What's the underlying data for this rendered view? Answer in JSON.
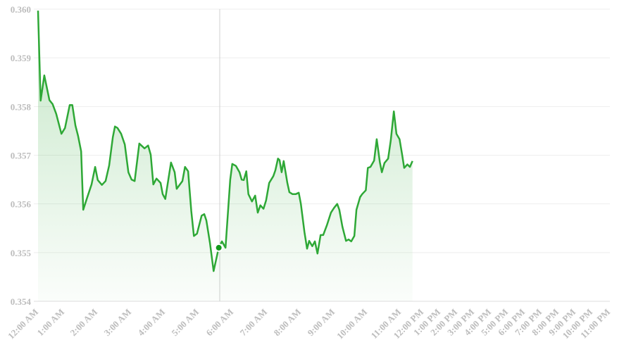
{
  "chart_data": {
    "type": "area",
    "title": "",
    "xlabel": "",
    "ylabel": "",
    "ylim": [
      0.354,
      0.36
    ],
    "y_ticks": [
      "0.354",
      "0.355",
      "0.356",
      "0.357",
      "0.358",
      "0.359",
      "0.360"
    ],
    "x_ticks": [
      "12:00 AM",
      "1:00 AM",
      "2:00 AM",
      "3:00 AM",
      "4:00 AM",
      "5:00 AM",
      "6:00 AM",
      "7:00 AM",
      "8:00 AM",
      "9:00 AM",
      "10:00 AM",
      "11:00 AM",
      "12:00 PM",
      "1:00 PM",
      "2:00 PM",
      "3:00 PM",
      "4:00 PM",
      "5:00 PM",
      "6:00 PM",
      "7:00 PM",
      "8:00 PM",
      "9:00 PM",
      "10:00 PM",
      "11:00 PM"
    ],
    "grid": true,
    "line_color": "#2ea836",
    "fill_color": "#2ea836",
    "hover": {
      "time": "5:48",
      "value": 0.3551
    },
    "x": [
      "0:00",
      "0:05",
      "0:12",
      "0:22",
      "0:28",
      "0:35",
      "0:45",
      "0:52",
      "1:01",
      "1:06",
      "1:12",
      "1:17",
      "1:23",
      "1:27",
      "1:34",
      "1:43",
      "1:50",
      "1:55",
      "2:03",
      "2:10",
      "2:17",
      "2:24",
      "2:28",
      "2:33",
      "2:40",
      "2:47",
      "2:54",
      "3:00",
      "3:06",
      "3:15",
      "3:25",
      "3:32",
      "3:37",
      "3:42",
      "3:48",
      "3:56",
      "4:00",
      "4:05",
      "4:16",
      "4:23",
      "4:27",
      "4:38",
      "4:43",
      "4:49",
      "4:55",
      "5:00",
      "5:06",
      "5:15",
      "5:20",
      "5:24",
      "5:31",
      "5:38",
      "5:44",
      "5:48",
      "5:54",
      "6:01",
      "6:10",
      "6:14",
      "6:21",
      "6:28",
      "6:32",
      "6:36",
      "6:41",
      "6:45",
      "6:52",
      "6:58",
      "7:03",
      "7:08",
      "7:14",
      "7:19",
      "7:25",
      "7:33",
      "7:37",
      "7:42",
      "7:45",
      "7:49",
      "7:53",
      "8:00",
      "8:04",
      "8:10",
      "8:16",
      "8:22",
      "8:26",
      "8:33",
      "8:38",
      "8:42",
      "8:48",
      "8:53",
      "8:58",
      "9:04",
      "9:09",
      "9:16",
      "9:24",
      "9:30",
      "9:36",
      "9:40",
      "9:46",
      "9:53",
      "9:58",
      "10:03",
      "10:09",
      "10:13",
      "10:20",
      "10:24",
      "10:31",
      "10:35",
      "10:40",
      "10:47",
      "10:52",
      "10:58",
      "11:02",
      "11:07",
      "11:14",
      "11:19",
      "11:25",
      "11:30",
      "11:36",
      "11:41",
      "11:45",
      "11:51",
      "11:56",
      "12:01"
    ],
    "values": [
      0.35997,
      0.35812,
      0.35864,
      0.35813,
      0.35805,
      0.35785,
      0.35744,
      0.35756,
      0.35803,
      0.35803,
      0.35761,
      0.3574,
      0.35708,
      0.35588,
      0.35611,
      0.3564,
      0.35676,
      0.35649,
      0.35639,
      0.35647,
      0.35679,
      0.35737,
      0.35759,
      0.35756,
      0.35744,
      0.35722,
      0.35665,
      0.3565,
      0.35647,
      0.35724,
      0.35714,
      0.3572,
      0.35701,
      0.3564,
      0.35652,
      0.35643,
      0.3562,
      0.3561,
      0.35685,
      0.35665,
      0.35631,
      0.35647,
      0.35676,
      0.35667,
      0.35585,
      0.35534,
      0.35539,
      0.35576,
      0.35579,
      0.35566,
      0.3552,
      0.35462,
      0.35491,
      0.3551,
      0.35523,
      0.3551,
      0.3565,
      0.35682,
      0.35678,
      0.35665,
      0.3565,
      0.35649,
      0.35667,
      0.3562,
      0.35605,
      0.35617,
      0.35582,
      0.35597,
      0.3559,
      0.35607,
      0.35643,
      0.35657,
      0.35669,
      0.35693,
      0.3569,
      0.35665,
      0.35688,
      0.35643,
      0.35624,
      0.3562,
      0.3562,
      0.35623,
      0.356,
      0.35542,
      0.35508,
      0.35524,
      0.35513,
      0.35523,
      0.35498,
      0.35536,
      0.35536,
      0.35556,
      0.35582,
      0.35592,
      0.356,
      0.35588,
      0.35553,
      0.35524,
      0.35527,
      0.35523,
      0.35534,
      0.35588,
      0.35614,
      0.3562,
      0.35628,
      0.35674,
      0.35676,
      0.35689,
      0.35733,
      0.35686,
      0.35665,
      0.35684,
      0.35693,
      0.3573,
      0.3579,
      0.35744,
      0.35733,
      0.35701,
      0.35674,
      0.35681,
      0.35676,
      0.35688
    ]
  }
}
